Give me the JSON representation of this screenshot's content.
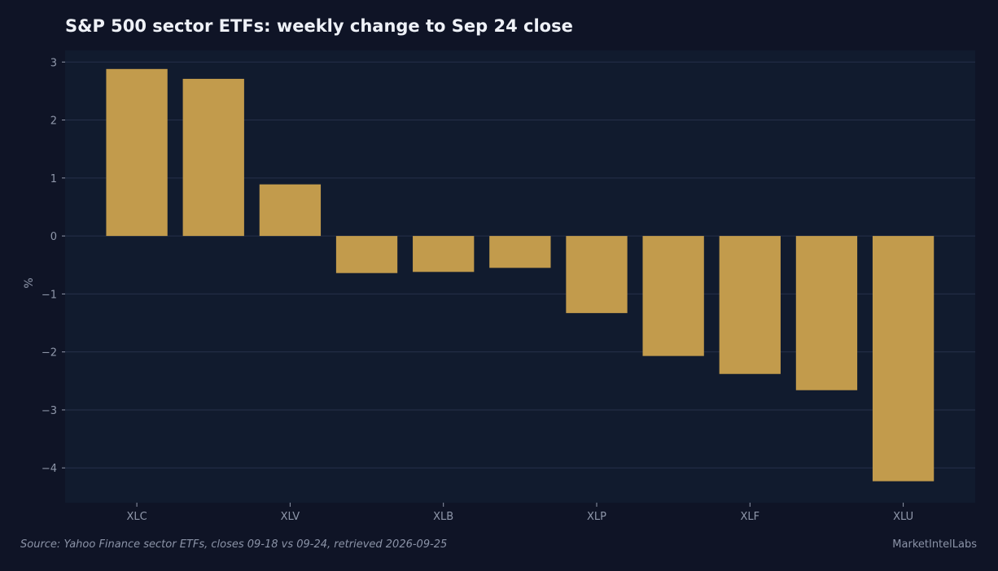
{
  "colors": {
    "page_bg": "#0f1426",
    "plot_bg": "#111b2e",
    "grid": "#26304a",
    "bar": "#c29b4c",
    "text": "#8f97aa",
    "title": "#eef1f7"
  },
  "chart_data": {
    "type": "bar",
    "title": "S&P 500 sector ETFs: weekly change to Sep 24 close",
    "ylabel": "%",
    "xlabel": "",
    "ylim": [
      -4.6,
      3.2
    ],
    "yticks": [
      3,
      2,
      1,
      0,
      -1,
      -2,
      -3,
      -4
    ],
    "ytick_labels": [
      "3",
      "2",
      "1",
      "0",
      "−1",
      "−2",
      "−3",
      "−4"
    ],
    "categories": [
      "XLC",
      "",
      "XLV",
      "",
      "XLB",
      "",
      "XLP",
      "",
      "XLF",
      "",
      "XLU"
    ],
    "values": [
      2.88,
      2.71,
      0.89,
      -0.64,
      -0.62,
      -0.55,
      -1.33,
      -2.07,
      -2.38,
      -2.66,
      -4.23
    ],
    "grid": true,
    "legend": "none"
  },
  "footer": {
    "source": "Source: Yahoo Finance sector ETFs, closes 09-18 vs 09-24, retrieved 2026-09-25",
    "brand": "MarketIntelLabs"
  }
}
